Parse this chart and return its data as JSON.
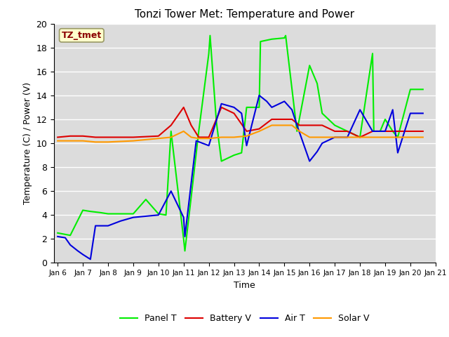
{
  "title": "Tonzi Tower Met: Temperature and Power",
  "xlabel": "Time",
  "ylabel": "Temperature (C) / Power (V)",
  "ylim": [
    0,
    20
  ],
  "bg_color": "#dcdcdc",
  "annotation_text": "TZ_tmet",
  "annotation_color": "#8b0000",
  "annotation_bg": "#ffffcc",
  "legend_labels": [
    "Panel T",
    "Battery V",
    "Air T",
    "Solar V"
  ],
  "legend_colors": [
    "#00ee00",
    "#dd0000",
    "#0000dd",
    "#ff9900"
  ],
  "series": {
    "panel_t": {
      "color": "#00ee00",
      "x": [
        6.0,
        6.5,
        7.0,
        7.3,
        7.7,
        8.0,
        8.5,
        9.0,
        9.5,
        10.0,
        10.3,
        10.5,
        11.0,
        11.05,
        11.3,
        11.6,
        12.0,
        12.05,
        12.3,
        12.5,
        13.0,
        13.3,
        13.5,
        14.0,
        14.05,
        14.5,
        15.0,
        15.05,
        15.5,
        16.0,
        16.3,
        16.5,
        17.0,
        17.5,
        18.0,
        18.5,
        18.55,
        18.8,
        19.0,
        19.3,
        19.5,
        20.0,
        20.5
      ],
      "y": [
        2.5,
        2.3,
        4.4,
        4.3,
        4.2,
        4.1,
        4.1,
        4.1,
        5.3,
        4.1,
        4.0,
        11.0,
        2.0,
        1.0,
        5.5,
        11.0,
        17.5,
        19.0,
        11.8,
        8.5,
        9.0,
        9.2,
        13.0,
        13.0,
        18.5,
        18.7,
        18.8,
        19.0,
        11.0,
        16.5,
        15.0,
        12.5,
        11.5,
        11.0,
        10.5,
        17.5,
        11.0,
        11.0,
        12.0,
        11.0,
        10.5,
        14.5,
        14.5
      ]
    },
    "battery_v": {
      "color": "#dd0000",
      "x": [
        6.0,
        6.5,
        7.0,
        7.5,
        8.0,
        9.0,
        10.0,
        10.5,
        11.0,
        11.3,
        11.6,
        12.0,
        12.5,
        13.0,
        13.5,
        14.0,
        14.5,
        15.0,
        15.3,
        15.6,
        16.0,
        16.5,
        17.0,
        17.5,
        18.0,
        18.5,
        19.0,
        19.5,
        20.0,
        20.5
      ],
      "y": [
        10.5,
        10.6,
        10.6,
        10.5,
        10.5,
        10.5,
        10.6,
        11.5,
        13.0,
        11.5,
        10.5,
        10.5,
        13.0,
        12.5,
        11.0,
        11.2,
        12.0,
        12.0,
        12.0,
        11.5,
        11.5,
        11.5,
        11.0,
        11.0,
        10.5,
        11.0,
        11.0,
        11.0,
        11.0,
        11.0
      ]
    },
    "air_t": {
      "color": "#0000dd",
      "x": [
        6.0,
        6.3,
        6.5,
        6.8,
        7.0,
        7.3,
        7.5,
        8.0,
        8.5,
        9.0,
        10.0,
        10.5,
        11.0,
        11.05,
        11.5,
        12.0,
        12.5,
        13.0,
        13.3,
        13.5,
        14.0,
        14.3,
        14.5,
        15.0,
        15.3,
        15.5,
        16.0,
        16.3,
        16.5,
        17.0,
        17.5,
        18.0,
        18.5,
        19.0,
        19.3,
        19.5,
        20.0,
        20.5
      ],
      "y": [
        2.2,
        2.1,
        1.5,
        1.0,
        0.7,
        0.3,
        3.1,
        3.1,
        3.5,
        3.8,
        4.0,
        6.0,
        3.8,
        2.2,
        10.2,
        9.8,
        13.3,
        13.0,
        12.5,
        9.8,
        14.0,
        13.5,
        13.0,
        13.5,
        12.8,
        11.5,
        8.5,
        9.3,
        10.0,
        10.5,
        10.5,
        12.8,
        11.0,
        11.0,
        12.8,
        9.2,
        12.5,
        12.5
      ]
    },
    "solar_v": {
      "color": "#ff9900",
      "x": [
        6.0,
        6.5,
        7.0,
        7.5,
        8.0,
        9.0,
        10.0,
        10.5,
        11.0,
        11.3,
        11.6,
        12.0,
        12.5,
        13.0,
        13.5,
        14.0,
        14.5,
        15.0,
        15.3,
        15.6,
        16.0,
        16.5,
        17.0,
        17.5,
        18.0,
        18.5,
        19.0,
        19.5,
        20.0,
        20.5
      ],
      "y": [
        10.2,
        10.2,
        10.2,
        10.1,
        10.1,
        10.2,
        10.4,
        10.5,
        11.0,
        10.5,
        10.4,
        10.4,
        10.5,
        10.5,
        10.6,
        11.0,
        11.5,
        11.5,
        11.5,
        11.0,
        10.5,
        10.5,
        10.5,
        10.5,
        10.5,
        10.5,
        10.5,
        10.5,
        10.5,
        10.5
      ]
    }
  },
  "tick_days": [
    6,
    7,
    8,
    9,
    10,
    11,
    12,
    13,
    14,
    15,
    16,
    17,
    18,
    19,
    20,
    21
  ],
  "xlim": [
    5.85,
    21.0
  ]
}
